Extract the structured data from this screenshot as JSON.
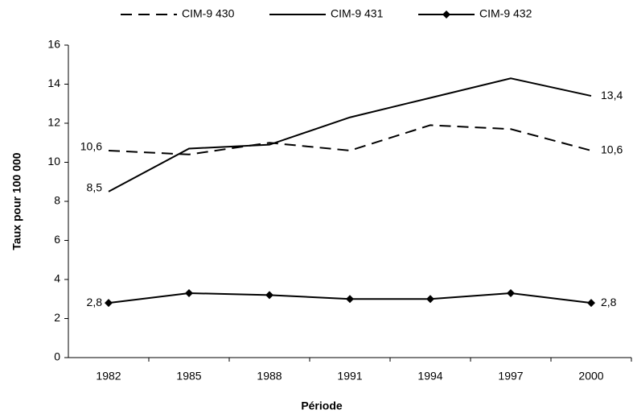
{
  "chart_data": {
    "type": "line",
    "x_label": "Période",
    "y_label": "Taux pour 100 000",
    "categories": [
      "1982",
      "1985",
      "1988",
      "1991",
      "1994",
      "1997",
      "2000"
    ],
    "series": [
      {
        "name": "CIM-9 430",
        "color": "#000000",
        "style": "dashed",
        "marker": "none",
        "values": [
          10.6,
          10.4,
          11.0,
          10.6,
          11.9,
          11.7,
          10.6
        ],
        "value_labels": [
          "10,6",
          null,
          null,
          null,
          null,
          null,
          "10,6"
        ]
      },
      {
        "name": "CIM-9 431",
        "color": "#000000",
        "style": "solid",
        "marker": "none",
        "values": [
          8.5,
          10.7,
          10.9,
          12.3,
          13.3,
          14.3,
          13.4
        ],
        "value_labels": [
          "8,5",
          null,
          null,
          null,
          null,
          null,
          "13,4"
        ]
      },
      {
        "name": "CIM-9 432",
        "color": "#000000",
        "style": "solid",
        "marker": "diamond",
        "values": [
          2.8,
          3.3,
          3.2,
          3.0,
          3.0,
          3.3,
          2.8
        ],
        "value_labels": [
          "2,8",
          null,
          null,
          null,
          null,
          null,
          "2,8"
        ]
      }
    ],
    "ylim": [
      0,
      16
    ],
    "yticks": [
      0,
      2,
      4,
      6,
      8,
      10,
      12,
      14,
      16
    ],
    "grid": false,
    "legend": "top"
  }
}
